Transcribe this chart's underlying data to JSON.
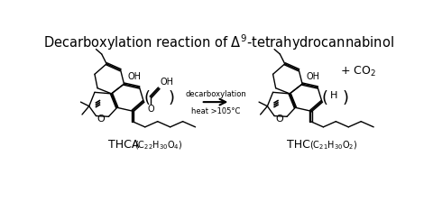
{
  "background_color": "#ffffff",
  "line_color": "#000000",
  "line_width": 1.0,
  "title": "Decarboxylation reaction of $\\Delta^{9}$-tetrahydrocannabinol",
  "title_fontsize": 10.5,
  "arrow_label1": "decarboxylation",
  "arrow_label2": "heat >105°C",
  "thca_name": "THCA",
  "thca_formula": " (C$_{22}$H$_{30}$O$_{4}$)",
  "thc_name": "THC",
  "thc_formula": " (C$_{21}$H$_{30}$O$_{2}$)",
  "co2": "+ CO$_{2}$"
}
